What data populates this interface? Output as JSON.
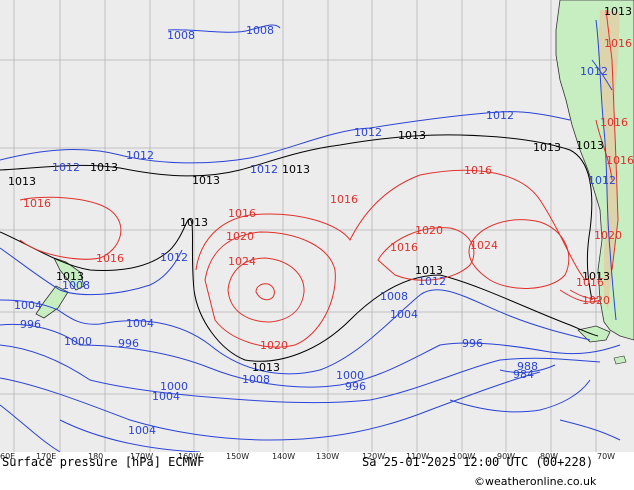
{
  "footer": {
    "title": "Surface pressure [hPa] ECMWF",
    "valid_time": "Sa 25-01-2025 12:00 UTC (00+228)",
    "credit": "©weatheronline.co.uk"
  },
  "longitude_ticks": [
    "60E",
    "170E",
    "180",
    "170W",
    "160W",
    "150W",
    "140W",
    "130W",
    "120W",
    "110W",
    "100W",
    "90W",
    "80W",
    "70W"
  ],
  "isobar_labels": {
    "black": [
      "1013",
      "1013",
      "1013",
      "1013",
      "1013",
      "1013",
      "1013",
      "1013",
      "1013",
      "1013",
      "1013",
      "1013",
      "1013"
    ],
    "red": [
      "1016",
      "1016",
      "1016",
      "1016",
      "1016",
      "1020",
      "1024",
      "1020",
      "1016",
      "1020",
      "1024",
      "1020",
      "1016",
      "1016",
      "1016",
      "1020",
      "1016"
    ],
    "blue": [
      "1008",
      "1008",
      "1012",
      "1012",
      "1012",
      "1012",
      "1012",
      "1012",
      "1008",
      "1004",
      "996",
      "1004",
      "1000",
      "996",
      "1008",
      "1004",
      "1000",
      "996",
      "1004",
      "1000",
      "1008",
      "1004",
      "996",
      "988",
      "984",
      "1012",
      "1012",
      "1012"
    ]
  },
  "colors": {
    "ocean": "#ececec",
    "land": "#c7eec0",
    "high_isobar": "#e0302a",
    "low_isobar": "#2a43d6",
    "mslp_isobar": "#000000",
    "grid": "#b5b5b5"
  }
}
